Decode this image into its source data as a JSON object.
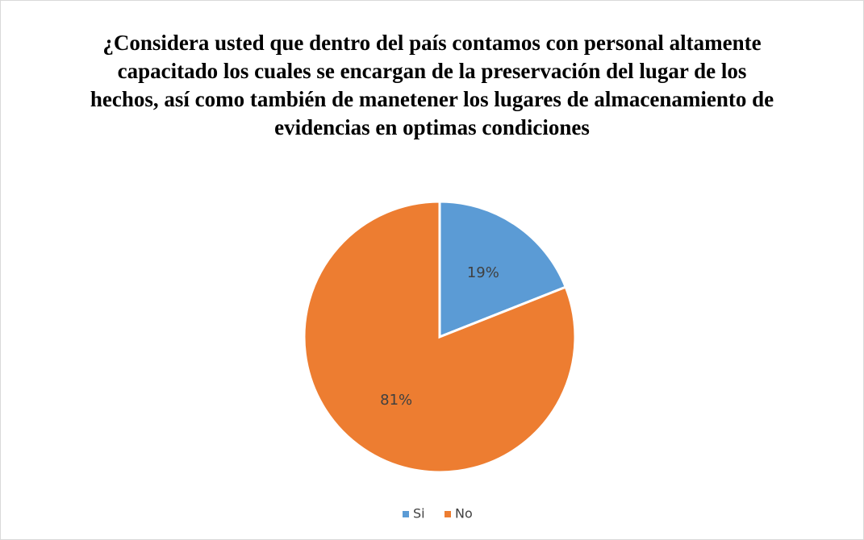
{
  "chart_data": {
    "type": "pie",
    "title": "¿Considera usted que dentro del país contamos con personal altamente capacitado los cuales se encargan de la preservación del lugar de los hechos, así como también de manetener los lugares de almacenamiento de evidencias en optimas condiciones",
    "categories": [
      "Si",
      "No"
    ],
    "values": [
      19,
      81
    ],
    "value_labels": [
      "19%",
      "81%"
    ],
    "colors": [
      "#5b9bd5",
      "#ed7d31"
    ],
    "legend": "bottom"
  }
}
